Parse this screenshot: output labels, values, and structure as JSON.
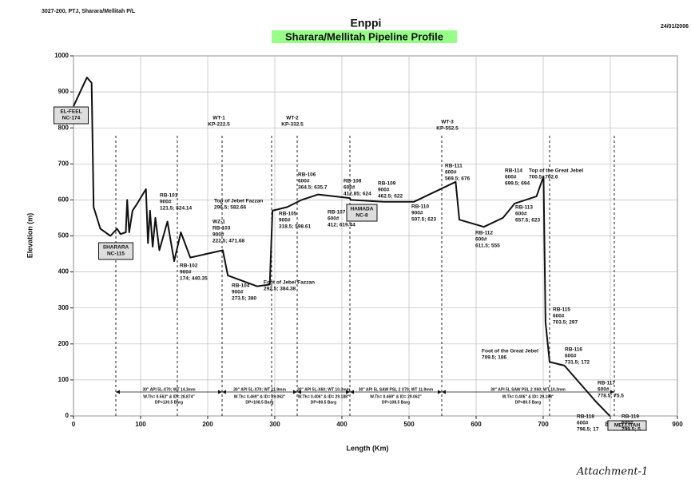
{
  "header": {
    "ref": "3027-200, PTJ, Sharara/Mellitah P/L",
    "company": "Enppi",
    "date": "24/01/2006",
    "footer": "Attachment-1"
  },
  "chart_data": {
    "type": "line",
    "title": "Sharara/Mellitah Pipeline Profile",
    "x_label": "Length (Km)",
    "y_label": "Elevation (m)",
    "xlim": [
      0,
      900
    ],
    "xticks": [
      0,
      100,
      200,
      300,
      400,
      500,
      600,
      700,
      800,
      900
    ],
    "ylim": [
      0,
      1000
    ],
    "yticks": [
      0,
      100,
      200,
      300,
      400,
      500,
      600,
      700,
      800,
      900,
      1000
    ],
    "grid": true,
    "series": [
      {
        "name": "Elevation",
        "color": "#111111",
        "x": [
          0,
          10,
          20,
          27,
          30,
          40,
          55,
          65,
          70,
          78,
          80,
          83,
          88,
          95,
          108,
          111,
          114,
          118,
          122,
          128,
          140,
          150,
          160,
          174,
          222.5,
          230,
          273.5,
          292.5,
          296.5,
          318.5,
          340,
          364.5,
          412,
          412.85,
          462.5,
          507.5,
          569.5,
          575,
          611.5,
          640,
          657.5,
          690,
          700.5,
          703.5,
          709.5,
          731.5,
          778.5,
          796.5,
          799.5
        ],
        "values": [
          860,
          900,
          940,
          925,
          580,
          520,
          500,
          520,
          505,
          510,
          600,
          510,
          570,
          590,
          630,
          480,
          570,
          470,
          550,
          460,
          540,
          430,
          510,
          440,
          460,
          390,
          360,
          365,
          570,
          580,
          600,
          615,
          605,
          600,
          595,
          595,
          650,
          545,
          525,
          550,
          590,
          610,
          665,
          260,
          150,
          140,
          40,
          5,
          0
        ]
      }
    ],
    "annotations": [
      {
        "lines": [
          "EL-FEEL",
          "NC-174"
        ],
        "box": true
      },
      {
        "lines": [
          "SHARARA",
          "NC-115"
        ],
        "box": true
      },
      {
        "lines": [
          "HAMADA",
          "NC-8"
        ],
        "box": true
      },
      {
        "lines": [
          "MELLITAH"
        ],
        "box": true
      },
      {
        "lines": [
          "WT-1",
          "KP-222.5"
        ]
      },
      {
        "lines": [
          "WT-2",
          "KP-332.5"
        ]
      },
      {
        "lines": [
          "WT-3",
          "KP-552.5"
        ]
      },
      {
        "lines": [
          "RB-101",
          "900#",
          "121.5; 524.14"
        ]
      },
      {
        "lines": [
          "RB-102",
          "900#",
          "174; 440.35"
        ]
      },
      {
        "lines": [
          "WZ-1",
          "RB-103",
          "900#",
          "222.5; 471.68"
        ]
      },
      {
        "lines": [
          "RB-104",
          "900#",
          "273.5; 380"
        ]
      },
      {
        "lines": [
          "Top of Jebel Fazzan",
          "296.5; 582.66"
        ]
      },
      {
        "lines": [
          "Foot of Jebel Fazzan",
          "292.5; 384.38"
        ]
      },
      {
        "lines": [
          "RB-105",
          "900#",
          "318.5; 598.61"
        ]
      },
      {
        "lines": [
          "RB-106",
          "600#",
          "364.5; 635.7"
        ]
      },
      {
        "lines": [
          "RB-107",
          "600#",
          "412; 619.44"
        ]
      },
      {
        "lines": [
          "RB-108",
          "600#",
          "412.85; 624"
        ]
      },
      {
        "lines": [
          "RB-109",
          "900#",
          "462.5; 622"
        ]
      },
      {
        "lines": [
          "RB-110",
          "900#",
          "507.5; 623"
        ]
      },
      {
        "lines": [
          "RB-111",
          "600#",
          "569.5; 676"
        ]
      },
      {
        "lines": [
          "RB-112",
          "600#",
          "611.5; 555"
        ]
      },
      {
        "lines": [
          "RB-113",
          "600#",
          "657.5; 623"
        ]
      },
      {
        "lines": [
          "RB-114",
          "600#",
          "699.5; 694"
        ]
      },
      {
        "lines": [
          "Top of the Great Jebel",
          "700.5; 702.6"
        ]
      },
      {
        "lines": [
          "RB-115",
          "600#",
          "703.5; 297"
        ]
      },
      {
        "lines": [
          "Foot of the Great Jebel",
          "709.5; 186"
        ]
      },
      {
        "lines": [
          "RB-116",
          "600#",
          "731.5; 172"
        ]
      },
      {
        "lines": [
          "RB-117",
          "600#",
          "778.5; 75.5"
        ]
      },
      {
        "lines": [
          "RB-118",
          "600#",
          "796.5; 17"
        ]
      },
      {
        "lines": [
          "RB-119",
          "600#",
          "799.5; 5"
        ]
      }
    ],
    "pipe_sections": [
      [
        "30\" API 5L-X70; WT 14.3mm",
        "W.Th= 0.563\" & ID= 28.874\"",
        "DP=130.5 Barg"
      ],
      [
        "30\" API 5L-X70; WT 11.9mm",
        "W.Th= 0.469\" & ID= 29.062\"",
        "DP=108.5 Barg"
      ],
      [
        "30\" API 5L-X60; WT 10.3mm",
        "W.Th= 0.406\" & ID= 29.188\"",
        "DP=80.5 Barg"
      ],
      [
        "30\" API 5L SAW PSL 2 X70; WT 11.9mm",
        "W.Th= 0.469\" & ID= 29.062\"",
        "DP=108.5 Barg"
      ],
      [
        "30\" API 5L SAW PSL 2 X60; WT 10.3mm",
        "W.Th= 0.406\" & ID= 29.188\"",
        "DP=80.5 Barg"
      ]
    ]
  }
}
